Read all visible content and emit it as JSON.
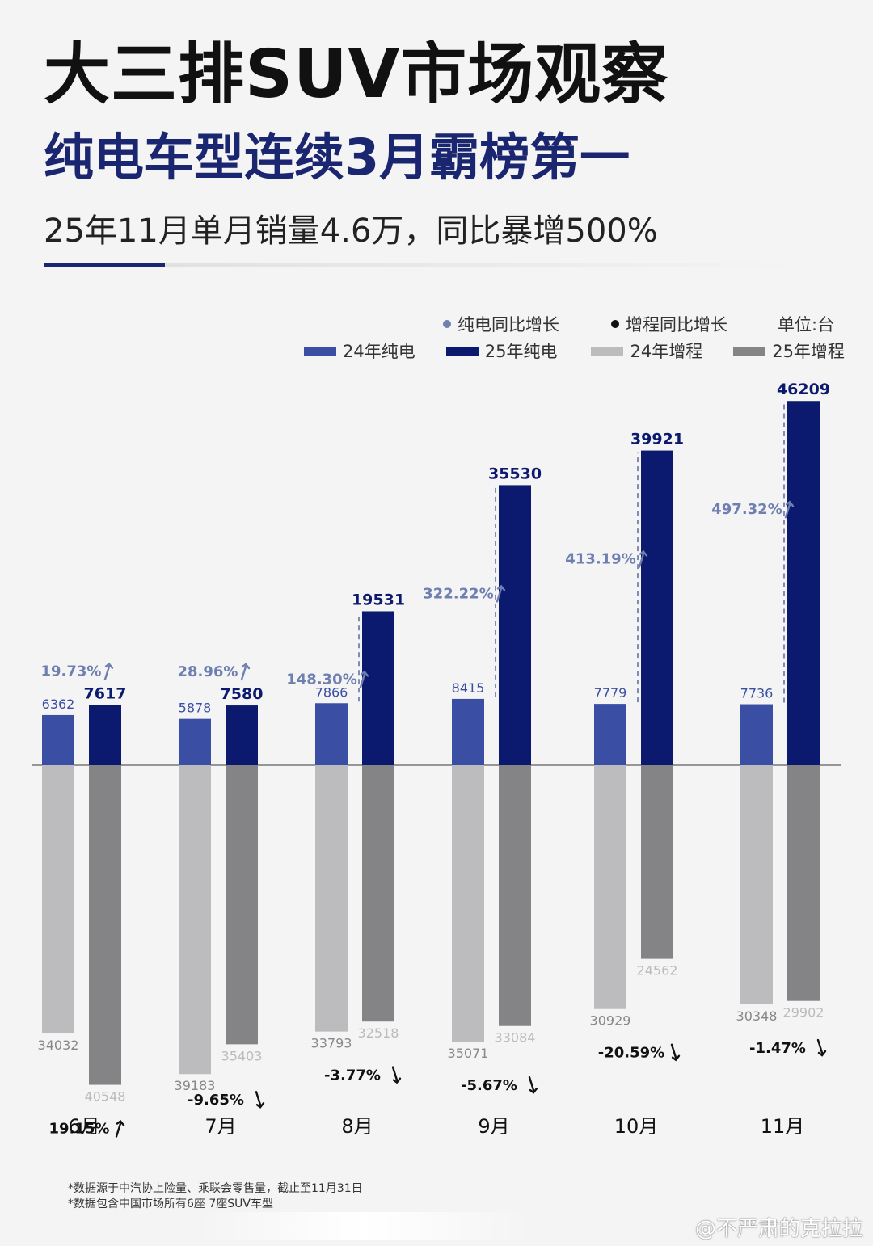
{
  "header": {
    "title": "大三排SUV市场观察",
    "subtitle": "纯电车型连续3月霸榜第一",
    "headline": "25年11月单月销量4.6万，同比暴增500%"
  },
  "legend": {
    "ev_growth_label": "纯电同比增长",
    "erev_growth_label": "增程同比增长",
    "unit": "单位:台",
    "ev24": "24年纯电",
    "ev25": "25年纯电",
    "erev24": "24年增程",
    "erev25": "25年增程"
  },
  "colors": {
    "ev24": "#3a4ea3",
    "ev25": "#0b1a6e",
    "erev24": "#bcbcbe",
    "erev25": "#848486",
    "ev_growth": "#6f7fb0",
    "erev_growth": "#111111"
  },
  "chart_data": {
    "type": "bar",
    "categories": [
      "6月",
      "7月",
      "8月",
      "9月",
      "10月",
      "11月"
    ],
    "series": [
      {
        "name": "24年纯电",
        "values": [
          6362,
          5878,
          7866,
          8415,
          7779,
          7736
        ]
      },
      {
        "name": "25年纯电",
        "values": [
          7617,
          7580,
          19531,
          35530,
          39921,
          46209
        ]
      },
      {
        "name": "24年增程",
        "values": [
          34032,
          39183,
          33793,
          35071,
          30929,
          30348
        ]
      },
      {
        "name": "25年增程",
        "values": [
          40548,
          35403,
          32518,
          33084,
          24562,
          29902
        ]
      }
    ],
    "ev_growth": [
      "19.73%",
      "28.96%",
      "148.30%",
      "322.22%",
      "413.19%",
      "497.32%"
    ],
    "erev_growth": [
      "19.15%",
      "-9.65%",
      "-3.77%",
      "-5.67%",
      "-20.59%",
      "-1.47%"
    ],
    "layout_note": "纯电 plotted upward, 增程 plotted downward from a shared baseline"
  },
  "footer": {
    "note1": "*数据源于中汽协上险量、乘联会零售量，截止至11月31日",
    "note2": "*数据包含中国市场所有6座 7座SUV车型",
    "watermark": "@不严肃的克拉拉"
  }
}
